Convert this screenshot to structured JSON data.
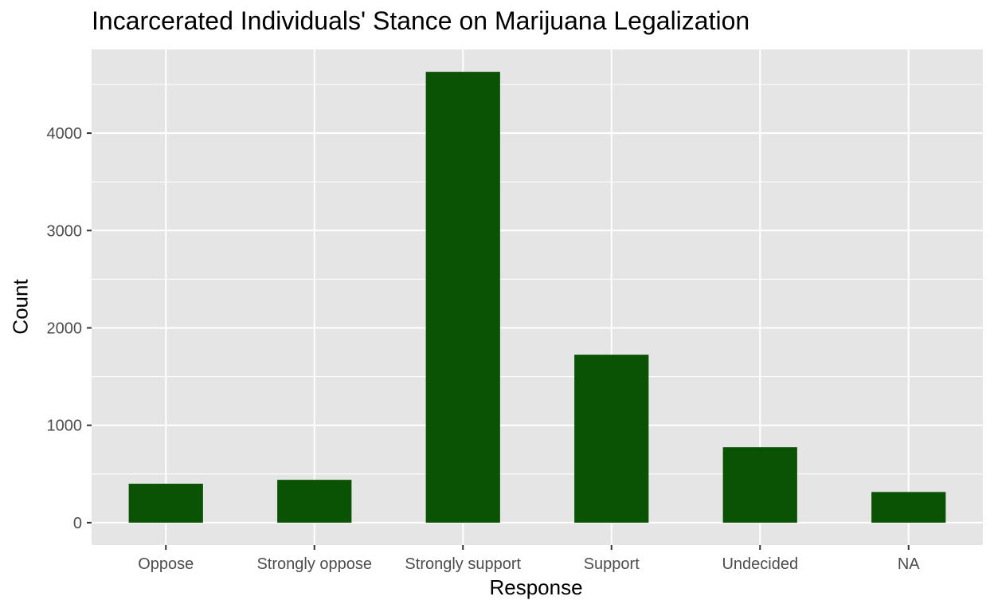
{
  "chart_data": {
    "type": "bar",
    "title": "Incarcerated Individuals' Stance on Marijuana Legalization",
    "xlabel": "Response",
    "ylabel": "Count",
    "categories": [
      "Oppose",
      "Strongly oppose",
      "Strongly support",
      "Support",
      "Undecided",
      "NA"
    ],
    "values": [
      400,
      440,
      4630,
      1725,
      775,
      315
    ],
    "yticks": [
      0,
      1000,
      2000,
      3000,
      4000
    ],
    "ylim": [
      -230,
      4860
    ],
    "grid": true,
    "legend": "none",
    "colors": {
      "bar": "#0b5304",
      "panel": "#e5e5e5",
      "grid": "#ffffff"
    }
  }
}
